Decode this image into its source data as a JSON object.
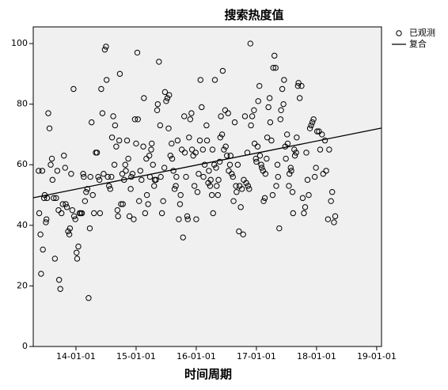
{
  "chart_data": {
    "type": "scatter",
    "title": "搜索热度值",
    "x_label": "时间周期",
    "xlim": [
      2013.29,
      2019.08
    ],
    "ylim": [
      0,
      105.5
    ],
    "xticks": [
      {
        "value": 2014,
        "label": "14-01-01"
      },
      {
        "value": 2015,
        "label": "15-01-01"
      },
      {
        "value": 2016,
        "label": "16-01-01"
      },
      {
        "value": 2017,
        "label": "17-01-01"
      },
      {
        "value": 2018,
        "label": "18-01-01"
      },
      {
        "value": 2019,
        "label": "19-01-01"
      }
    ],
    "yticks": [
      0,
      20,
      40,
      60,
      80,
      100
    ],
    "plot_background": "#f0f0f0",
    "legend": "top-right",
    "series": [
      {
        "name": "已观测",
        "mark": "circle",
        "color": "#000000",
        "x": [
          2013.38,
          2013.39,
          2013.41,
          2013.42,
          2013.44,
          2013.45,
          2013.47,
          2013.48,
          2013.5,
          2013.51,
          2013.52,
          2013.54,
          2013.56,
          2013.58,
          2013.6,
          2013.61,
          2013.63,
          2013.65,
          2013.67,
          2013.69,
          2013.71,
          2013.72,
          2013.74,
          2013.76,
          2013.78,
          2013.8,
          2013.82,
          2013.83,
          2013.85,
          2013.87,
          2013.89,
          2013.9,
          2013.92,
          2013.94,
          2013.96,
          2013.97,
          2013.99,
          2014.01,
          2014.02,
          2014.04,
          2014.06,
          2014.08,
          2014.1,
          2014.12,
          2014.13,
          2014.15,
          2014.17,
          2014.19,
          2014.21,
          2014.23,
          2014.24,
          2014.26,
          2014.28,
          2014.3,
          2014.33,
          2014.35,
          2014.37,
          2014.39,
          2014.4,
          2014.42,
          2014.44,
          2014.46,
          2014.48,
          2014.5,
          2014.51,
          2014.53,
          2014.55,
          2014.57,
          2014.59,
          2014.6,
          2014.62,
          2014.64,
          2014.65,
          2014.67,
          2014.69,
          2014.7,
          2014.72,
          2014.73,
          2014.75,
          2014.77,
          2014.78,
          2014.8,
          2014.82,
          2014.83,
          2014.85,
          2014.87,
          2014.89,
          2014.91,
          2014.92,
          2014.94,
          2014.96,
          2014.98,
          2015.0,
          2015.02,
          2015.03,
          2015.05,
          2015.07,
          2015.09,
          2015.12,
          2015.13,
          2015.15,
          2015.17,
          2015.18,
          2015.2,
          2015.22,
          2015.23,
          2015.25,
          2015.26,
          2015.28,
          2015.3,
          2015.31,
          2015.33,
          2015.35,
          2015.36,
          2015.38,
          2015.4,
          2015.41,
          2015.43,
          2015.45,
          2015.47,
          2015.48,
          2015.5,
          2015.52,
          2015.54,
          2015.55,
          2015.57,
          2015.59,
          2015.6,
          2015.62,
          2015.64,
          2015.66,
          2015.67,
          2015.69,
          2015.71,
          2015.73,
          2015.74,
          2015.76,
          2015.78,
          2015.8,
          2015.81,
          2015.83,
          2015.85,
          2015.86,
          2015.88,
          2015.9,
          2015.92,
          2015.93,
          2015.95,
          2015.97,
          2015.99,
          2016.0,
          2016.02,
          2016.04,
          2016.06,
          2016.07,
          2016.09,
          2016.11,
          2016.12,
          2016.14,
          2016.17,
          2016.18,
          2016.2,
          2016.21,
          2016.23,
          2016.24,
          2016.26,
          2016.27,
          2016.28,
          2016.3,
          2016.31,
          2016.33,
          2016.34,
          2016.36,
          2016.37,
          2016.39,
          2016.4,
          2016.41,
          2016.43,
          2016.44,
          2016.46,
          2016.48,
          2016.49,
          2016.51,
          2016.53,
          2016.54,
          2016.56,
          2016.57,
          2016.59,
          2016.61,
          2016.62,
          2016.64,
          2016.66,
          2016.67,
          2016.69,
          2016.71,
          2016.72,
          2016.74,
          2016.76,
          2016.78,
          2016.79,
          2016.81,
          2016.83,
          2016.85,
          2016.86,
          2016.88,
          2016.9,
          2016.91,
          2016.93,
          2016.96,
          2016.97,
          2016.99,
          2017.0,
          2017.02,
          2017.03,
          2017.05,
          2017.06,
          2017.08,
          2017.09,
          2017.11,
          2017.12,
          2017.14,
          2017.15,
          2017.17,
          2017.18,
          2017.2,
          2017.22,
          2017.23,
          2017.25,
          2017.27,
          2017.28,
          2017.3,
          2017.32,
          2017.33,
          2017.35,
          2017.36,
          2017.38,
          2017.4,
          2017.41,
          2017.43,
          2017.45,
          2017.46,
          2017.48,
          2017.49,
          2017.51,
          2017.52,
          2017.54,
          2017.55,
          2017.57,
          2017.58,
          2017.6,
          2017.61,
          2017.63,
          2017.64,
          2017.66,
          2017.67,
          2017.69,
          2017.7,
          2017.72,
          2017.75,
          2017.77,
          2017.79,
          2017.81,
          2017.83,
          2017.85,
          2017.87,
          2017.89,
          2017.91,
          2017.93,
          2017.95,
          2017.97,
          2017.99,
          2018.01,
          2018.04,
          2018.06,
          2018.09,
          2018.11,
          2018.14,
          2018.16,
          2018.19,
          2018.21,
          2018.24,
          2018.26,
          2018.29,
          2018.31
        ],
        "values": [
          58,
          44,
          37,
          24,
          58,
          32,
          49,
          50,
          41,
          42,
          49,
          77,
          72,
          60,
          62,
          55,
          49,
          29,
          49,
          58,
          45,
          22,
          19,
          44,
          47,
          63,
          59,
          47,
          46,
          38,
          37,
          39,
          57,
          45,
          85,
          43,
          42,
          31,
          29,
          33,
          44,
          44,
          44,
          57,
          56,
          48,
          51,
          52,
          16,
          39,
          56,
          74,
          50,
          44,
          64,
          64,
          56,
          55,
          44,
          85,
          77,
          57,
          98,
          99,
          88,
          56,
          53,
          52,
          56,
          69,
          76,
          60,
          73,
          66,
          45,
          43,
          68,
          90,
          47,
          57,
          47,
          55,
          60,
          58,
          68,
          62,
          43,
          52,
          56,
          57,
          42,
          75,
          67,
          97,
          75,
          48,
          58,
          55,
          66,
          82,
          44,
          62,
          50,
          47,
          63,
          56,
          65,
          67,
          60,
          53,
          55,
          55,
          78,
          80,
          94,
          73,
          56,
          44,
          48,
          59,
          84,
          81,
          82,
          72,
          83,
          63,
          67,
          62,
          58,
          52,
          53,
          56,
          68,
          42,
          47,
          50,
          65,
          36,
          76,
          64,
          56,
          43,
          42,
          69,
          75,
          77,
          65,
          63,
          53,
          64,
          42,
          51,
          57,
          68,
          88,
          79,
          65,
          56,
          60,
          73,
          68,
          54,
          58,
          53,
          55,
          50,
          65,
          44,
          60,
          88,
          59,
          53,
          50,
          55,
          61,
          69,
          76,
          70,
          91,
          65,
          78,
          66,
          63,
          77,
          58,
          60,
          63,
          57,
          56,
          48,
          74,
          53,
          51,
          60,
          38,
          53,
          46,
          52,
          37,
          55,
          76,
          54,
          64,
          53,
          52,
          100,
          73,
          76,
          78,
          67,
          62,
          61,
          66,
          81,
          86,
          63,
          60,
          59,
          58,
          48,
          49,
          57,
          62,
          69,
          79,
          82,
          74,
          68,
          50,
          92,
          96,
          92,
          53,
          60,
          56,
          39,
          75,
          78,
          85,
          80,
          88,
          66,
          62,
          70,
          67,
          53,
          57,
          59,
          58,
          51,
          44,
          65,
          63,
          64,
          69,
          86,
          87,
          82,
          86,
          49,
          44,
          46,
          64,
          55,
          50,
          72,
          73,
          74,
          75,
          56,
          59,
          71,
          71,
          65,
          70,
          57,
          68,
          58,
          42,
          65,
          48,
          51,
          41,
          43
        ]
      },
      {
        "name": "复合",
        "mark": "line",
        "color": "#000000",
        "x": [
          2013.29,
          2019.08
        ],
        "values": [
          49.1,
          72.1
        ]
      }
    ]
  }
}
